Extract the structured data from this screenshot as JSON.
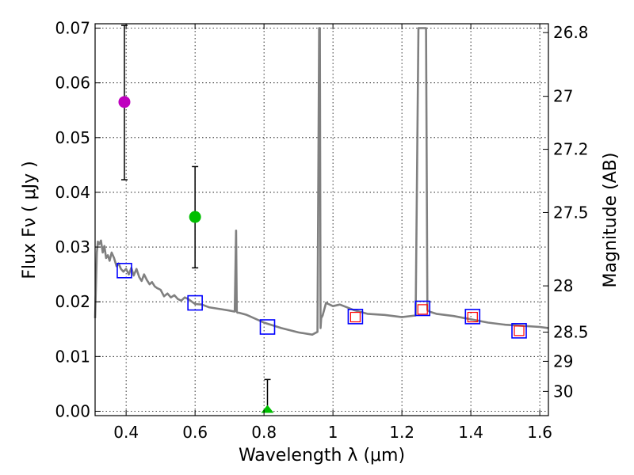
{
  "chart_data": {
    "type": "scatter",
    "xlabel": "Wavelength  λ (μm)",
    "ylabel": "Flux  Fν  ( μJy )",
    "ylabel_right": "Magnitude (AB)",
    "xlim": [
      0.31,
      1.625
    ],
    "ylim": [
      -0.0008,
      0.0708
    ],
    "grid": true,
    "x_ticks": [
      0.4,
      0.6,
      0.8,
      1.0,
      1.2,
      1.4,
      1.6
    ],
    "x_tick_labels": [
      "0.4",
      "0.6",
      "0.8",
      "1",
      "1.2",
      "1.4",
      "1.6"
    ],
    "y_ticks": [
      0.0,
      0.01,
      0.02,
      0.03,
      0.04,
      0.05,
      0.06,
      0.07
    ],
    "y_tick_labels": [
      "0.00",
      "0.01",
      "0.02",
      "0.03",
      "0.04",
      "0.05",
      "0.06",
      "0.07"
    ],
    "mag_ticks": [
      26.8,
      27,
      27.2,
      27.5,
      28,
      28.5,
      29,
      30
    ],
    "mag_tick_labels": [
      "26.8",
      "27",
      "27.2",
      "27.5",
      "28",
      "28.5",
      "29",
      "30"
    ],
    "colors": {
      "model": "#808080",
      "model_points": "#0000ff",
      "observed_squares": "#ff0000",
      "errorbar": "#000000",
      "photometry_colors": [
        "#bf00bf",
        "#00bf00",
        "#00bf00"
      ]
    },
    "series": [
      {
        "name": "model SED",
        "kind": "line",
        "x": [
          0.31,
          0.315,
          0.318,
          0.322,
          0.327,
          0.332,
          0.337,
          0.342,
          0.347,
          0.352,
          0.358,
          0.365,
          0.372,
          0.378,
          0.385,
          0.392,
          0.4,
          0.408,
          0.415,
          0.422,
          0.43,
          0.438,
          0.445,
          0.452,
          0.46,
          0.468,
          0.475,
          0.483,
          0.49,
          0.5,
          0.51,
          0.52,
          0.53,
          0.54,
          0.55,
          0.56,
          0.57,
          0.58,
          0.6,
          0.62,
          0.64,
          0.66,
          0.68,
          0.7,
          0.715,
          0.719,
          0.721,
          0.723,
          0.727,
          0.75,
          0.8,
          0.85,
          0.9,
          0.94,
          0.955,
          0.96,
          0.962,
          0.964,
          0.966,
          0.97,
          0.98,
          1.0,
          1.02,
          1.04,
          1.06,
          1.1,
          1.15,
          1.2,
          1.24,
          1.248,
          1.252,
          1.256,
          1.264,
          1.27,
          1.274,
          1.28,
          1.3,
          1.35,
          1.4,
          1.45,
          1.5,
          1.55,
          1.6,
          1.625
        ],
        "y": [
          0.017,
          0.029,
          0.031,
          0.0305,
          0.0312,
          0.029,
          0.0302,
          0.028,
          0.0285,
          0.0275,
          0.029,
          0.028,
          0.0265,
          0.027,
          0.026,
          0.0255,
          0.026,
          0.025,
          0.0262,
          0.0248,
          0.026,
          0.0245,
          0.0238,
          0.025,
          0.024,
          0.0232,
          0.0236,
          0.0228,
          0.0225,
          0.0222,
          0.021,
          0.0215,
          0.0208,
          0.0212,
          0.0205,
          0.0202,
          0.0208,
          0.0205,
          0.0196,
          0.0195,
          0.019,
          0.0188,
          0.0186,
          0.0184,
          0.0182,
          0.033,
          0.0182,
          0.018,
          0.018,
          0.0176,
          0.0162,
          0.0152,
          0.0144,
          0.014,
          0.0145,
          0.07,
          0.07,
          0.0152,
          0.017,
          0.0175,
          0.0198,
          0.0192,
          0.0195,
          0.019,
          0.0185,
          0.0178,
          0.0176,
          0.0172,
          0.0175,
          0.07,
          0.07,
          0.07,
          0.07,
          0.07,
          0.0185,
          0.0182,
          0.0178,
          0.0174,
          0.0168,
          0.0162,
          0.0158,
          0.0156,
          0.0154,
          0.0152
        ]
      },
      {
        "name": "model band fluxes",
        "kind": "open-square",
        "x": [
          0.395,
          0.6,
          0.81,
          1.065,
          1.26,
          1.405,
          1.54
        ],
        "y": [
          0.0257,
          0.0198,
          0.0154,
          0.0173,
          0.0188,
          0.0173,
          0.0147
        ]
      },
      {
        "name": "observed (small squares)",
        "kind": "open-square-small",
        "x": [
          1.065,
          1.26,
          1.405,
          1.54
        ],
        "y": [
          0.0172,
          0.0186,
          0.0172,
          0.0147
        ]
      },
      {
        "name": "photometry",
        "kind": "errorbar-point",
        "points": [
          {
            "x": 0.395,
            "y": 0.0565,
            "err_low": 0.0423,
            "err_high": 0.0705,
            "marker": "circle"
          },
          {
            "x": 0.6,
            "y": 0.0355,
            "err_low": 0.0262,
            "err_high": 0.0447,
            "marker": "circle"
          },
          {
            "x": 0.81,
            "y": 0.0,
            "err_low": 0.0,
            "err_high": 0.0058,
            "marker": "triangle"
          }
        ]
      }
    ]
  }
}
